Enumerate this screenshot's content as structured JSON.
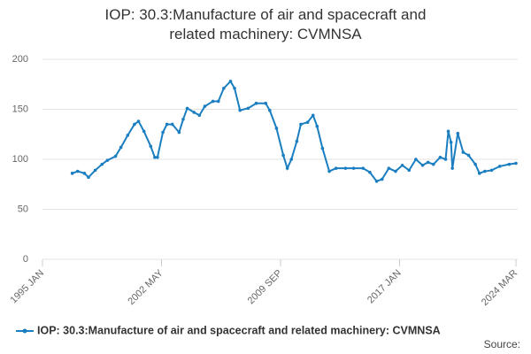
{
  "chart_data": {
    "type": "line",
    "title": "IOP: 30.3:Manufacture of air and spacecraft and related machinery: CVMNSA",
    "source": "Source:",
    "x": [
      "1996 NOV",
      "1997 MAR",
      "1997 AUG",
      "1997 NOV",
      "1998 APR",
      "1998 SEP",
      "1999 JAN",
      "1999 JUL",
      "1999 NOV",
      "2000 APR",
      "2000 SEP",
      "2000 DEC",
      "2001 APR",
      "2001 SEP",
      "2001 DEC",
      "2002 FEB",
      "2002 JUN",
      "2002 SEP",
      "2003 JAN",
      "2003 JUN",
      "2003 SEP",
      "2003 DEC",
      "2004 MAY",
      "2004 SEP",
      "2005 JAN",
      "2005 JUL",
      "2005 NOV",
      "2006 MAR",
      "2006 AUG",
      "2006 NOV",
      "2007 MAR",
      "2007 SEP",
      "2008 MAR",
      "2008 OCT",
      "2009 JAN",
      "2009 JUN",
      "2009 NOV",
      "2010 FEB",
      "2010 MAY",
      "2010 SEP",
      "2010 DEC",
      "2011 MAY",
      "2011 SEP",
      "2011 DEC",
      "2012 APR",
      "2012 SEP",
      "2013 FEB",
      "2013 SEP",
      "2014 MAR",
      "2014 OCT",
      "2015 MAR",
      "2015 AUG",
      "2015 DEC",
      "2016 MAY",
      "2016 OCT",
      "2017 MAR",
      "2017 AUG",
      "2018 JAN",
      "2018 JUN",
      "2018 OCT",
      "2019 FEB",
      "2019 JUL",
      "2019 NOV",
      "2020 JAN",
      "2020 MAR",
      "2020 APR",
      "2020 AUG",
      "2020 DEC",
      "2021 APR",
      "2021 SEP",
      "2021 DEC",
      "2022 APR",
      "2022 SEP",
      "2023 MAR",
      "2023 OCT",
      "2024 MAR"
    ],
    "series": [
      {
        "name": "IOP: 30.3:Manufacture of air and spacecraft and related machinery: CVMNSA",
        "color": "#1a7ec0",
        "values": [
          86,
          88,
          86,
          82,
          89,
          95,
          99,
          103,
          112,
          124,
          135,
          138,
          128,
          113,
          102,
          102,
          127,
          135,
          135,
          127,
          140,
          151,
          147,
          144,
          153,
          158,
          158,
          171,
          178,
          171,
          149,
          151,
          156,
          156,
          149,
          131,
          104,
          91,
          100,
          118,
          135,
          137,
          144,
          133,
          111,
          88,
          91,
          91,
          91,
          91,
          87,
          78,
          80,
          91,
          88,
          94,
          89,
          100,
          94,
          97,
          95,
          102,
          100,
          128,
          117,
          91,
          126,
          107,
          104,
          95,
          86,
          88,
          89,
          93,
          95,
          96
        ]
      }
    ],
    "xlim": [
      "1995 JAN",
      "2024 MAR"
    ],
    "xticks": [
      "1995 JAN",
      "2002 MAY",
      "2009 SEP",
      "2017 JAN",
      "2024 MAR"
    ],
    "ylim": [
      0,
      200
    ],
    "yticks": [
      0,
      50,
      100,
      150,
      200
    ],
    "grid": true
  }
}
